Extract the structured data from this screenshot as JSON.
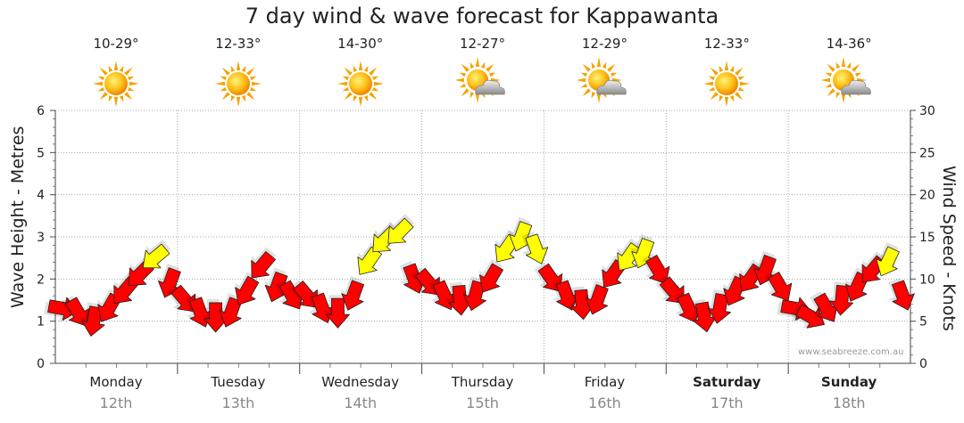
{
  "title": "7 day wind & wave forecast for Kappawanta",
  "days": [
    {
      "name": "Monday",
      "date": "12th",
      "temp": "10-29°",
      "weather_icon": "sun-icon",
      "bold": false
    },
    {
      "name": "Tuesday",
      "date": "13th",
      "temp": "12-33°",
      "weather_icon": "sun-icon",
      "bold": false
    },
    {
      "name": "Wednesday",
      "date": "14th",
      "temp": "14-30°",
      "weather_icon": "sun-icon",
      "bold": false
    },
    {
      "name": "Thursday",
      "date": "15th",
      "temp": "12-27°",
      "weather_icon": "partly-cloudy-icon",
      "bold": false
    },
    {
      "name": "Friday",
      "date": "16th",
      "temp": "12-29°",
      "weather_icon": "partly-cloudy-icon",
      "bold": false
    },
    {
      "name": "Saturday",
      "date": "17th",
      "temp": "12-33°",
      "weather_icon": "sun-icon",
      "bold": true
    },
    {
      "name": "Sunday",
      "date": "18th",
      "temp": "14-36°",
      "weather_icon": "partly-cloudy-icon",
      "bold": true
    }
  ],
  "credit": "www.seabreeze.com.au",
  "chart_data": {
    "type": "line",
    "title": "7 day wind & wave forecast for Kappawanta",
    "ylabel_left": "Wave Height - Metres",
    "ylabel_right": "Wind Speed - Knots",
    "ylim_left": [
      0,
      6
    ],
    "ylim_right": [
      0,
      30
    ],
    "yticks_left": [
      "0",
      "1",
      "2",
      "3",
      "4",
      "5",
      "6"
    ],
    "yticks_right": [
      "0",
      "5",
      "10",
      "15",
      "20",
      "25",
      "30"
    ],
    "categories": [
      "Monday 12th",
      "Tuesday 13th",
      "Wednesday 14th",
      "Thursday 15th",
      "Friday 16th",
      "Saturday 17th",
      "Sunday 18th"
    ],
    "series": [
      {
        "name": "Wind Speed (knots), 3-hourly",
        "colors": {
          "below_12kt": "#ff0000",
          "12kt_and_above": "#ffff00"
        },
        "values": [
          [
            6.5,
            6,
            5,
            6.5,
            8.5,
            10.5,
            12.5,
            9.5
          ],
          [
            7.5,
            6,
            5.5,
            6,
            8.5,
            11.5,
            9,
            8
          ],
          [
            8,
            6.5,
            6,
            8,
            12,
            14.5,
            15.5,
            10
          ],
          [
            9.5,
            8,
            7.5,
            8,
            10,
            13.5,
            15,
            13.5
          ],
          [
            10,
            8,
            7,
            7.5,
            10.5,
            12.5,
            13,
            11
          ],
          [
            8.5,
            6.5,
            5.5,
            6.5,
            8.5,
            10,
            11,
            9
          ],
          [
            6.5,
            5.5,
            6.5,
            7.5,
            9,
            11,
            12,
            8
          ]
        ],
        "direction_deg": [
          [
            100,
            150,
            190,
            210,
            220,
            225,
            230,
            200
          ],
          [
            140,
            160,
            180,
            200,
            210,
            220,
            200,
            150
          ],
          [
            140,
            160,
            180,
            200,
            215,
            225,
            225,
            160
          ],
          [
            140,
            155,
            175,
            195,
            210,
            215,
            200,
            160
          ],
          [
            145,
            160,
            175,
            200,
            215,
            215,
            200,
            150
          ],
          [
            140,
            155,
            170,
            190,
            205,
            215,
            200,
            150
          ],
          [
            100,
            120,
            150,
            185,
            205,
            220,
            205,
            160
          ]
        ]
      }
    ]
  },
  "grid": true
}
